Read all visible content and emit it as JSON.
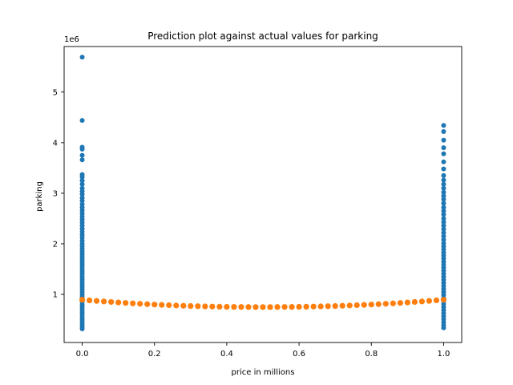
{
  "chart_data": {
    "type": "scatter",
    "title": "Prediction plot against actual values for parking",
    "xlabel": "price in millions",
    "ylabel": "parking",
    "y_offset_label": "1e6",
    "xlim": [
      -0.05,
      1.05
    ],
    "ylim": [
      0.05,
      5.9
    ],
    "y_scale_factor": 1000000,
    "x_ticks": [
      0.0,
      0.2,
      0.4,
      0.6,
      0.8,
      1.0
    ],
    "x_tick_labels": [
      "0.0",
      "0.2",
      "0.4",
      "0.6",
      "0.8",
      "1.0"
    ],
    "y_ticks": [
      1,
      2,
      3,
      4,
      5
    ],
    "y_tick_labels": [
      "1",
      "2",
      "3",
      "4",
      "5"
    ],
    "grid": false,
    "colors": {
      "actual": "#1f77b4",
      "predicted": "#ff7f0e"
    },
    "series": [
      {
        "values": [
          {
            "x": 0.0,
            "y": 5.69
          },
          {
            "x": 0.0,
            "y": 4.44
          },
          {
            "x": 0.0,
            "y": 3.91
          },
          {
            "x": 0.0,
            "y": 3.87
          },
          {
            "x": 0.0,
            "y": 3.75
          },
          {
            "x": 0.0,
            "y": 3.66
          },
          {
            "x": 0.0,
            "y": 3.37
          },
          {
            "x": 0.0,
            "y": 3.32
          },
          {
            "x": 0.0,
            "y": 3.25
          },
          {
            "x": 0.0,
            "y": 3.18
          },
          {
            "x": 0.0,
            "y": 3.1
          },
          {
            "x": 0.0,
            "y": 3.04
          },
          {
            "x": 0.0,
            "y": 2.98
          },
          {
            "x": 0.0,
            "y": 2.91
          },
          {
            "x": 0.0,
            "y": 2.85
          },
          {
            "x": 0.0,
            "y": 2.78
          },
          {
            "x": 0.0,
            "y": 2.72
          },
          {
            "x": 0.0,
            "y": 2.66
          },
          {
            "x": 0.0,
            "y": 2.6
          },
          {
            "x": 0.0,
            "y": 2.54
          },
          {
            "x": 0.0,
            "y": 2.48
          },
          {
            "x": 0.0,
            "y": 2.42
          },
          {
            "x": 0.0,
            "y": 2.36
          },
          {
            "x": 0.0,
            "y": 2.3
          },
          {
            "x": 0.0,
            "y": 2.24
          },
          {
            "x": 0.0,
            "y": 2.18
          },
          {
            "x": 0.0,
            "y": 2.12
          },
          {
            "x": 0.0,
            "y": 2.06
          },
          {
            "x": 0.0,
            "y": 2.0
          },
          {
            "x": 0.0,
            "y": 1.95
          },
          {
            "x": 0.0,
            "y": 1.9
          },
          {
            "x": 0.0,
            "y": 1.85
          },
          {
            "x": 0.0,
            "y": 1.8
          },
          {
            "x": 0.0,
            "y": 1.75
          },
          {
            "x": 0.0,
            "y": 1.7
          },
          {
            "x": 0.0,
            "y": 1.65
          },
          {
            "x": 0.0,
            "y": 1.6
          },
          {
            "x": 0.0,
            "y": 1.55
          },
          {
            "x": 0.0,
            "y": 1.5
          },
          {
            "x": 0.0,
            "y": 1.45
          },
          {
            "x": 0.0,
            "y": 1.4
          },
          {
            "x": 0.0,
            "y": 1.35
          },
          {
            "x": 0.0,
            "y": 1.3
          },
          {
            "x": 0.0,
            "y": 1.25
          },
          {
            "x": 0.0,
            "y": 1.2
          },
          {
            "x": 0.0,
            "y": 1.15
          },
          {
            "x": 0.0,
            "y": 1.1
          },
          {
            "x": 0.0,
            "y": 1.05
          },
          {
            "x": 0.0,
            "y": 1.0
          },
          {
            "x": 0.0,
            "y": 0.95
          },
          {
            "x": 0.0,
            "y": 0.9
          },
          {
            "x": 0.0,
            "y": 0.85
          },
          {
            "x": 0.0,
            "y": 0.8
          },
          {
            "x": 0.0,
            "y": 0.75
          },
          {
            "x": 0.0,
            "y": 0.7
          },
          {
            "x": 0.0,
            "y": 0.65
          },
          {
            "x": 0.0,
            "y": 0.6
          },
          {
            "x": 0.0,
            "y": 0.55
          },
          {
            "x": 0.0,
            "y": 0.5
          },
          {
            "x": 0.0,
            "y": 0.45
          },
          {
            "x": 0.0,
            "y": 0.4
          },
          {
            "x": 0.0,
            "y": 0.36
          },
          {
            "x": 0.0,
            "y": 0.32
          },
          {
            "x": 1.0,
            "y": 4.34
          },
          {
            "x": 1.0,
            "y": 4.22
          },
          {
            "x": 1.0,
            "y": 4.05
          },
          {
            "x": 1.0,
            "y": 3.9
          },
          {
            "x": 1.0,
            "y": 3.78
          },
          {
            "x": 1.0,
            "y": 3.62
          },
          {
            "x": 1.0,
            "y": 3.48
          },
          {
            "x": 1.0,
            "y": 3.35
          },
          {
            "x": 1.0,
            "y": 3.26
          },
          {
            "x": 1.0,
            "y": 3.18
          },
          {
            "x": 1.0,
            "y": 3.1
          },
          {
            "x": 1.0,
            "y": 3.02
          },
          {
            "x": 1.0,
            "y": 2.95
          },
          {
            "x": 1.0,
            "y": 2.88
          },
          {
            "x": 1.0,
            "y": 2.8
          },
          {
            "x": 1.0,
            "y": 2.72
          },
          {
            "x": 1.0,
            "y": 2.65
          },
          {
            "x": 1.0,
            "y": 2.58
          },
          {
            "x": 1.0,
            "y": 2.5
          },
          {
            "x": 1.0,
            "y": 2.43
          },
          {
            "x": 1.0,
            "y": 2.36
          },
          {
            "x": 1.0,
            "y": 2.29
          },
          {
            "x": 1.0,
            "y": 2.22
          },
          {
            "x": 1.0,
            "y": 2.15
          },
          {
            "x": 1.0,
            "y": 2.08
          },
          {
            "x": 1.0,
            "y": 2.01
          },
          {
            "x": 1.0,
            "y": 1.95
          },
          {
            "x": 1.0,
            "y": 1.89
          },
          {
            "x": 1.0,
            "y": 1.83
          },
          {
            "x": 1.0,
            "y": 1.77
          },
          {
            "x": 1.0,
            "y": 1.71
          },
          {
            "x": 1.0,
            "y": 1.65
          },
          {
            "x": 1.0,
            "y": 1.59
          },
          {
            "x": 1.0,
            "y": 1.53
          },
          {
            "x": 1.0,
            "y": 1.47
          },
          {
            "x": 1.0,
            "y": 1.41
          },
          {
            "x": 1.0,
            "y": 1.35
          },
          {
            "x": 1.0,
            "y": 1.29
          },
          {
            "x": 1.0,
            "y": 1.23
          },
          {
            "x": 1.0,
            "y": 1.17
          },
          {
            "x": 1.0,
            "y": 1.11
          },
          {
            "x": 1.0,
            "y": 1.05
          },
          {
            "x": 1.0,
            "y": 0.99
          },
          {
            "x": 1.0,
            "y": 0.93
          },
          {
            "x": 1.0,
            "y": 0.87
          },
          {
            "x": 1.0,
            "y": 0.81
          },
          {
            "x": 1.0,
            "y": 0.75
          },
          {
            "x": 1.0,
            "y": 0.69
          },
          {
            "x": 1.0,
            "y": 0.63
          },
          {
            "x": 1.0,
            "y": 0.57
          },
          {
            "x": 1.0,
            "y": 0.51
          },
          {
            "x": 1.0,
            "y": 0.45
          },
          {
            "x": 1.0,
            "y": 0.39
          },
          {
            "x": 1.0,
            "y": 0.34
          }
        ]
      },
      {
        "values": [
          {
            "x": 0.0,
            "y": 0.895
          },
          {
            "x": 0.02,
            "y": 0.883
          },
          {
            "x": 0.04,
            "y": 0.872
          },
          {
            "x": 0.06,
            "y": 0.861
          },
          {
            "x": 0.08,
            "y": 0.851
          },
          {
            "x": 0.1,
            "y": 0.841
          },
          {
            "x": 0.12,
            "y": 0.832
          },
          {
            "x": 0.14,
            "y": 0.823
          },
          {
            "x": 0.16,
            "y": 0.815
          },
          {
            "x": 0.18,
            "y": 0.807
          },
          {
            "x": 0.2,
            "y": 0.8
          },
          {
            "x": 0.22,
            "y": 0.793
          },
          {
            "x": 0.24,
            "y": 0.787
          },
          {
            "x": 0.26,
            "y": 0.781
          },
          {
            "x": 0.28,
            "y": 0.776
          },
          {
            "x": 0.3,
            "y": 0.771
          },
          {
            "x": 0.32,
            "y": 0.767
          },
          {
            "x": 0.34,
            "y": 0.763
          },
          {
            "x": 0.36,
            "y": 0.76
          },
          {
            "x": 0.38,
            "y": 0.757
          },
          {
            "x": 0.4,
            "y": 0.755
          },
          {
            "x": 0.42,
            "y": 0.753
          },
          {
            "x": 0.44,
            "y": 0.752
          },
          {
            "x": 0.46,
            "y": 0.751
          },
          {
            "x": 0.48,
            "y": 0.75
          },
          {
            "x": 0.5,
            "y": 0.75
          },
          {
            "x": 0.52,
            "y": 0.75
          },
          {
            "x": 0.54,
            "y": 0.751
          },
          {
            "x": 0.56,
            "y": 0.752
          },
          {
            "x": 0.58,
            "y": 0.753
          },
          {
            "x": 0.6,
            "y": 0.755
          },
          {
            "x": 0.62,
            "y": 0.757
          },
          {
            "x": 0.64,
            "y": 0.76
          },
          {
            "x": 0.66,
            "y": 0.763
          },
          {
            "x": 0.68,
            "y": 0.767
          },
          {
            "x": 0.7,
            "y": 0.771
          },
          {
            "x": 0.72,
            "y": 0.776
          },
          {
            "x": 0.74,
            "y": 0.781
          },
          {
            "x": 0.76,
            "y": 0.787
          },
          {
            "x": 0.78,
            "y": 0.793
          },
          {
            "x": 0.8,
            "y": 0.8
          },
          {
            "x": 0.82,
            "y": 0.807
          },
          {
            "x": 0.84,
            "y": 0.815
          },
          {
            "x": 0.86,
            "y": 0.823
          },
          {
            "x": 0.88,
            "y": 0.832
          },
          {
            "x": 0.9,
            "y": 0.841
          },
          {
            "x": 0.92,
            "y": 0.851
          },
          {
            "x": 0.94,
            "y": 0.861
          },
          {
            "x": 0.96,
            "y": 0.872
          },
          {
            "x": 0.98,
            "y": 0.883
          },
          {
            "x": 1.0,
            "y": 0.895
          }
        ]
      }
    ]
  }
}
